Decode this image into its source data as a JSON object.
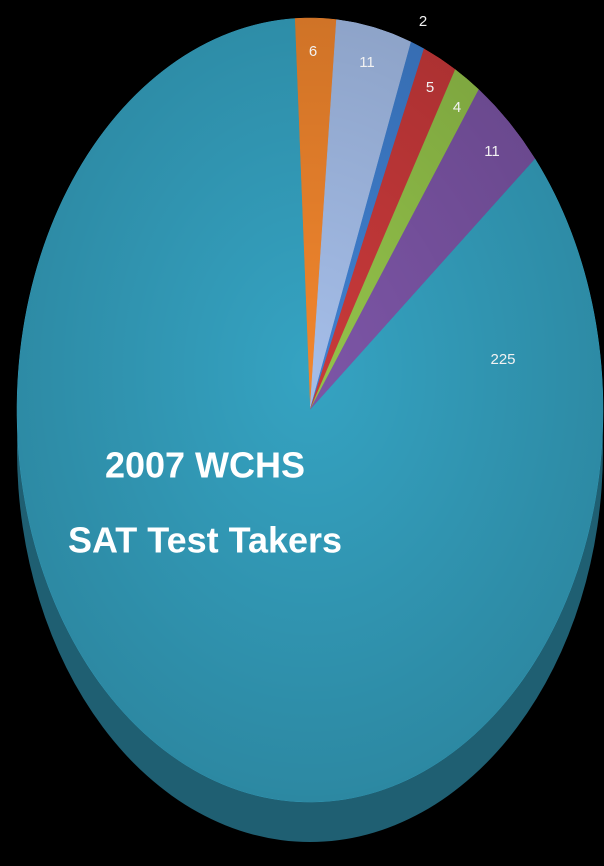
{
  "chart_data": {
    "type": "pie",
    "title": [
      "2007 WCHS",
      "SAT Test Takers"
    ],
    "values": [
      6,
      11,
      2,
      5,
      4,
      11,
      225
    ],
    "colors": [
      "#f0852d",
      "#a4bde8",
      "#3f7fcf",
      "#c8393a",
      "#93c24a",
      "#7c55a6",
      "#35a3c2"
    ],
    "start_angle": -3
  }
}
